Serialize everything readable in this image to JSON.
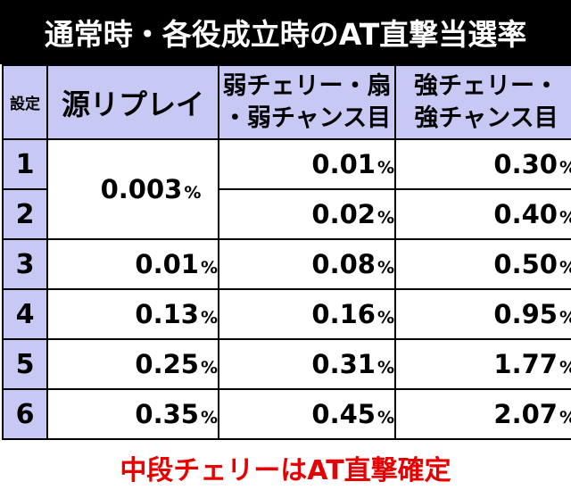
{
  "title": "通常時・各役成立時のAT直撃当選率",
  "headers": {
    "setting": "設定",
    "gen_replay": "源リプレイ",
    "weak_line1": "弱チェリー・扇",
    "weak_line2": "・弱チャンス目",
    "strong_line1": "強チェリー・",
    "strong_line2": "強チャンス目"
  },
  "percent_sign": "%",
  "rows": [
    {
      "setting": "1",
      "gen": "0.003",
      "weak": "0.01",
      "strong": "0.30"
    },
    {
      "setting": "2",
      "gen": "0.003",
      "weak": "0.02",
      "strong": "0.40"
    },
    {
      "setting": "3",
      "gen": "0.01",
      "weak": "0.08",
      "strong": "0.50"
    },
    {
      "setting": "4",
      "gen": "0.13",
      "weak": "0.16",
      "strong": "0.95"
    },
    {
      "setting": "5",
      "gen": "0.25",
      "weak": "0.31",
      "strong": "1.77"
    },
    {
      "setting": "6",
      "gen": "0.35",
      "weak": "0.45",
      "strong": "2.07"
    }
  ],
  "footnote": "中段チェリーはAT直撃確定",
  "colors": {
    "title_bg": "#000000",
    "header_bg": "#c8c8f4",
    "footnote_text": "#e60000"
  }
}
